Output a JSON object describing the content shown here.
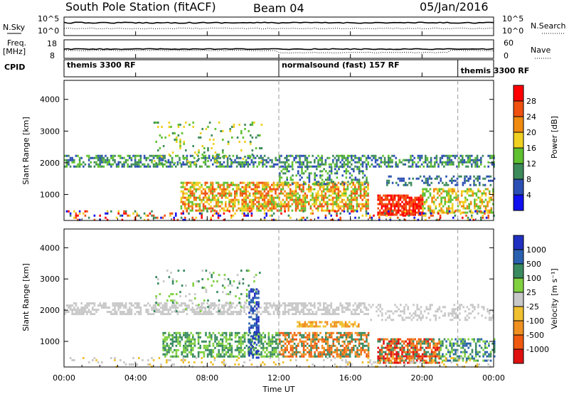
{
  "header": {
    "station": "South Pole Station (fitACF)",
    "beam": "Beam 04",
    "date": "05/Jan/2016"
  },
  "top_panels": {
    "nsky_label": "N.Sky",
    "nsky_ticks": [
      "10^5",
      "10^0"
    ],
    "nsearch_label": "N.Search",
    "nsearch_ticks": [
      "10^5",
      "10^0"
    ],
    "freq_label_line1": "Freq.",
    "freq_label_line2": "[MHz]",
    "freq_ticks": [
      "18",
      "8"
    ],
    "nave_label": "Nave",
    "nave_ticks": [
      "60",
      "0"
    ],
    "cpid_label": "CPID",
    "cpid_modes": [
      {
        "label": "themis 3300 RF",
        "start_hour": 0
      },
      {
        "label": "normalsound (fast) 157 RF",
        "start_hour": 12
      },
      {
        "label": "themis 3300 RF",
        "start_hour": 22
      }
    ]
  },
  "colors": {
    "power": [
      "#1010f0",
      "#2b4fb4",
      "#3d8a5a",
      "#5fc030",
      "#f0d020",
      "#f08a10",
      "#f05010",
      "#ff0000"
    ],
    "velocity": [
      "#e01010",
      "#f05a10",
      "#f09020",
      "#f0c030",
      "#c8c8c8",
      "#80d040",
      "#3a8a60",
      "#2a60b0",
      "#2030c0"
    ]
  },
  "chart_data": [
    {
      "type": "heatmap",
      "name": "power-panel",
      "ylabel": "Slant Range [km]",
      "ylim": [
        180,
        4600
      ],
      "yticks": [
        1000,
        2000,
        3000,
        4000
      ],
      "xlim": [
        0,
        24
      ],
      "colorbar_label": "Power [dB]",
      "colorbar_ticks": [
        4,
        8,
        12,
        16,
        20,
        24,
        28
      ],
      "scatter_bands": [
        {
          "t0": 0,
          "t1": 24,
          "r0": 1850,
          "r1": 2250,
          "levels": [
            1,
            2,
            3
          ],
          "density": 0.55
        },
        {
          "t0": 5,
          "t1": 11,
          "r0": 2000,
          "r1": 3300,
          "levels": [
            2,
            3,
            4
          ],
          "density": 0.12
        },
        {
          "t0": 6.5,
          "t1": 17,
          "r0": 500,
          "r1": 1400,
          "levels": [
            3,
            4,
            5,
            6
          ],
          "density": 0.65
        },
        {
          "t0": 17.5,
          "t1": 20,
          "r0": 350,
          "r1": 1000,
          "levels": [
            6,
            7
          ],
          "density": 0.8
        },
        {
          "t0": 20,
          "t1": 24,
          "r0": 450,
          "r1": 1200,
          "levels": [
            3,
            4,
            5
          ],
          "density": 0.55
        },
        {
          "t0": 12,
          "t1": 17,
          "r0": 1300,
          "r1": 1900,
          "levels": [
            1,
            2,
            3
          ],
          "density": 0.35
        },
        {
          "t0": 18,
          "t1": 24,
          "r0": 1300,
          "r1": 1600,
          "levels": [
            1,
            2
          ],
          "density": 0.35
        },
        {
          "t0": 0,
          "t1": 24,
          "r0": 180,
          "r1": 500,
          "levels": [
            0,
            2,
            4,
            6,
            7
          ],
          "density": 0.25
        }
      ]
    },
    {
      "type": "heatmap",
      "name": "velocity-panel",
      "ylabel": "Slant Range [km]",
      "xlabel": "Time UT",
      "ylim": [
        180,
        4600
      ],
      "yticks": [
        1000,
        2000,
        3000,
        4000
      ],
      "xlim": [
        0,
        24
      ],
      "xticks": [
        "00:00",
        "04:00",
        "08:00",
        "12:00",
        "16:00",
        "20:00",
        "00:00"
      ],
      "colorbar_label": "Velocity [m s⁻¹]",
      "colorbar_ticks": [
        -1000,
        -500,
        -100,
        -25,
        25,
        100,
        500,
        1000
      ],
      "scatter_bands": [
        {
          "t0": 0,
          "t1": 17,
          "r0": 1850,
          "r1": 2250,
          "levels": [
            4
          ],
          "density": 0.55
        },
        {
          "t0": 17,
          "t1": 24,
          "r0": 1700,
          "r1": 2200,
          "levels": [
            4
          ],
          "density": 0.3
        },
        {
          "t0": 5,
          "t1": 11,
          "r0": 2000,
          "r1": 3300,
          "levels": [
            4,
            5,
            6
          ],
          "density": 0.1
        },
        {
          "t0": 5.5,
          "t1": 12,
          "r0": 500,
          "r1": 1300,
          "levels": [
            5,
            6
          ],
          "density": 0.6
        },
        {
          "t0": 12,
          "t1": 17,
          "r0": 500,
          "r1": 1300,
          "levels": [
            1,
            2,
            6
          ],
          "density": 0.65
        },
        {
          "t0": 13,
          "t1": 16.5,
          "r0": 1500,
          "r1": 1650,
          "levels": [
            2,
            3
          ],
          "density": 0.7
        },
        {
          "t0": 17.5,
          "t1": 21,
          "r0": 300,
          "r1": 1100,
          "levels": [
            0,
            1,
            2,
            6
          ],
          "density": 0.75
        },
        {
          "t0": 21,
          "t1": 24,
          "r0": 400,
          "r1": 1100,
          "levels": [
            6,
            7,
            5
          ],
          "density": 0.5
        },
        {
          "t0": 10.3,
          "t1": 10.9,
          "r0": 500,
          "r1": 2700,
          "levels": [
            7,
            8
          ],
          "density": 0.5
        },
        {
          "t0": 0,
          "t1": 24,
          "r0": 180,
          "r1": 500,
          "levels": [
            3,
            4
          ],
          "density": 0.12
        }
      ]
    }
  ]
}
